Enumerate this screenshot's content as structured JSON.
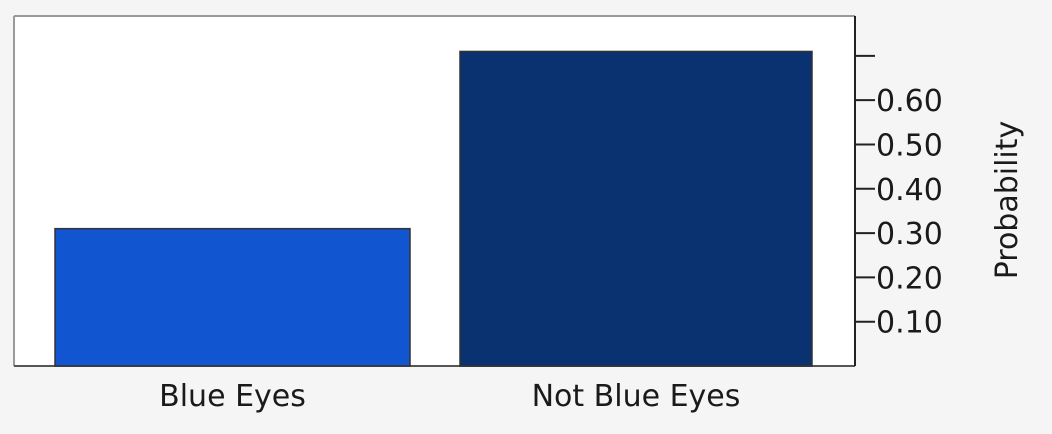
{
  "chart_data": {
    "type": "bar",
    "title": "",
    "xlabel": "",
    "ylabel": "Probability",
    "categories": [
      "Blue Eyes",
      "Not Blue Eyes"
    ],
    "values": [
      0.31,
      0.71
    ],
    "bar_colors": [
      "#1155d1",
      "#0a3270"
    ],
    "ylim": [
      0,
      0.79
    ],
    "yticks": [
      0.1,
      0.2,
      0.3,
      0.4,
      0.5,
      0.6,
      0.7
    ],
    "ytick_labels": [
      "0.10",
      "0.20",
      "0.30",
      "0.40",
      "0.50",
      "0.60",
      ""
    ],
    "grid": false,
    "legend": "none",
    "y_axis_side": "right"
  }
}
